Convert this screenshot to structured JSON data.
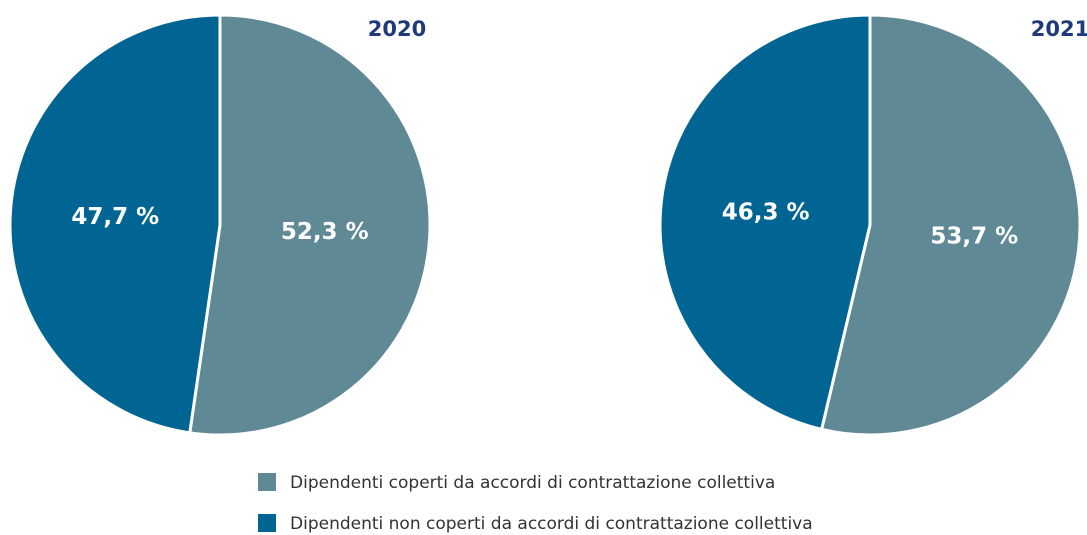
{
  "chart_data": [
    {
      "type": "pie",
      "title": "2020",
      "values": [
        52.3,
        47.7
      ],
      "value_labels": [
        "52,3 %",
        "47,7 %"
      ],
      "colors": [
        "#5f8a95",
        "#006593"
      ]
    },
    {
      "type": "pie",
      "title": "2021",
      "values": [
        53.7,
        46.3
      ],
      "value_labels": [
        "53,7 %",
        "46,3 %"
      ],
      "colors": [
        "#5f8a95",
        "#006593"
      ]
    }
  ],
  "legend": {
    "labels": [
      "Dipendenti coperti da accordi di contrattazione collettiva",
      "Dipendenti non coperti da accordi di contrattazione collettiva"
    ],
    "colors": [
      "#5f8a95",
      "#006593"
    ]
  }
}
